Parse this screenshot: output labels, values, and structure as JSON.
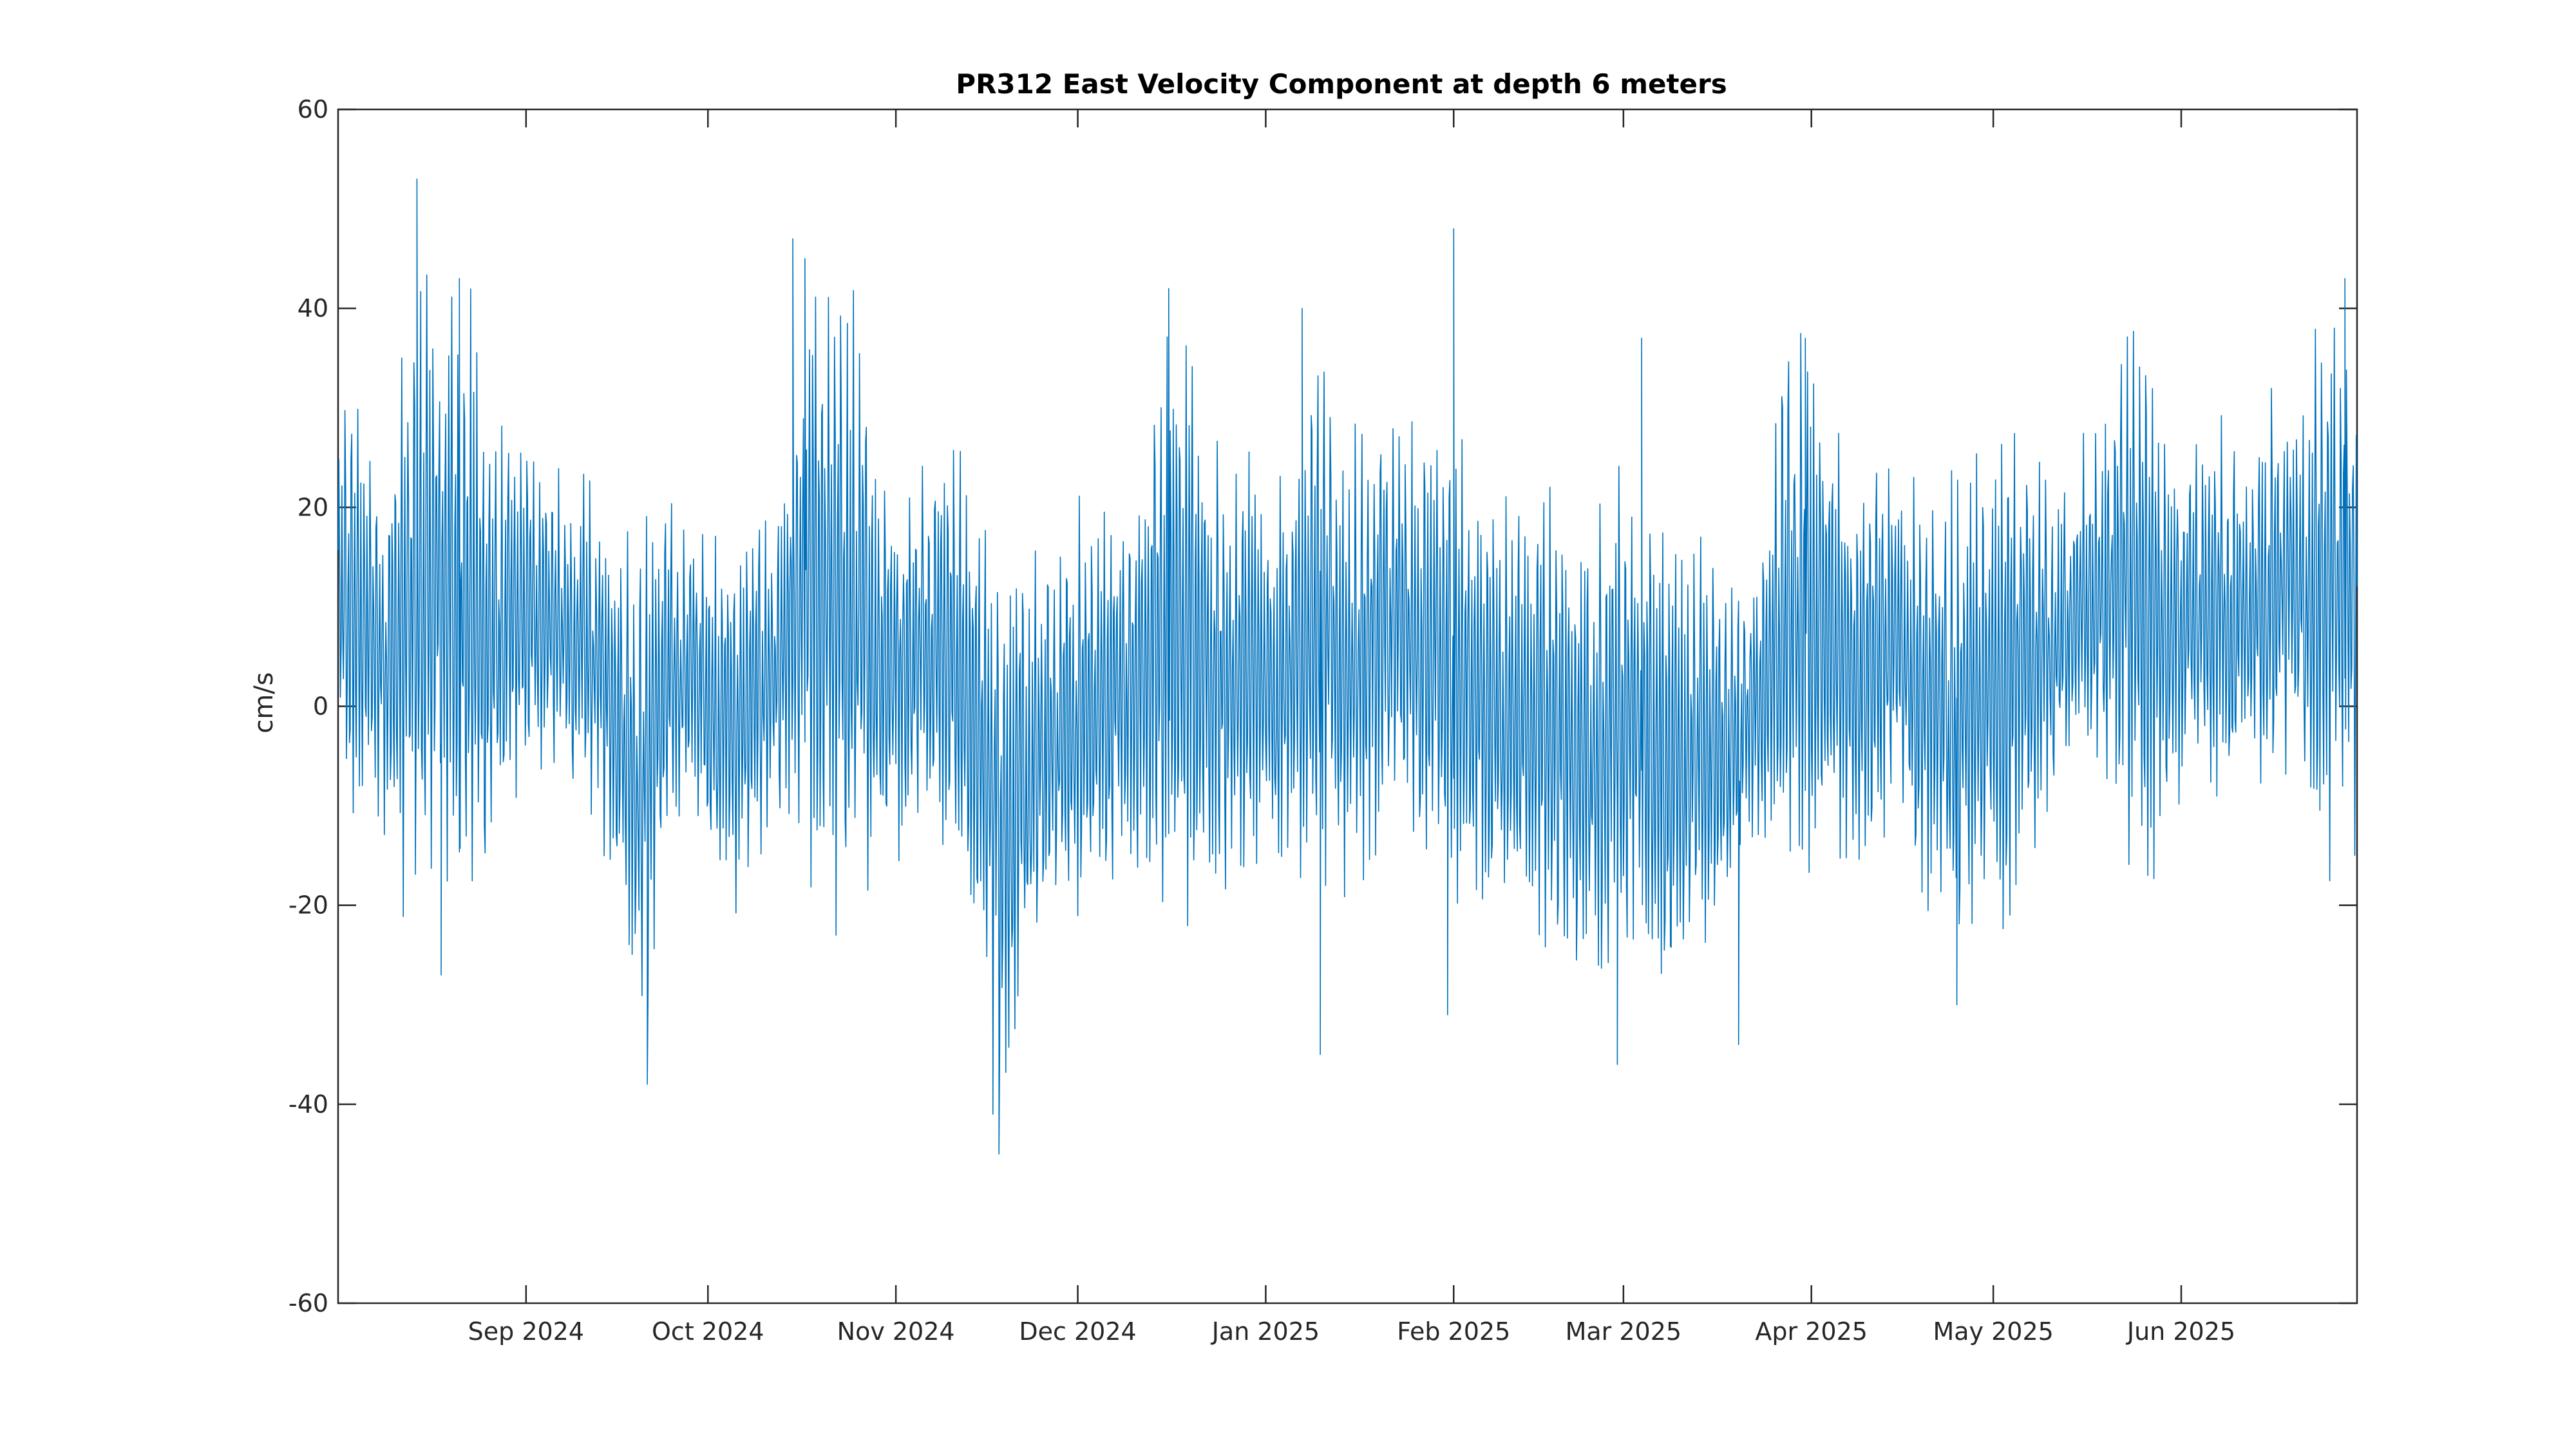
{
  "chart_data": {
    "type": "line",
    "title": "PR312 East Velocity Component at depth 6 meters",
    "xlabel": "",
    "ylabel": "cm/s",
    "xlim": [
      "2024-08-01",
      "2025-06-30"
    ],
    "ylim": [
      -60,
      60
    ],
    "grid": false,
    "legend": "none",
    "y_ticks": [
      -60,
      -40,
      -20,
      0,
      20,
      40,
      60
    ],
    "x_ticks": [
      {
        "date": "2024-09-01",
        "label": "Sep 2024"
      },
      {
        "date": "2024-10-01",
        "label": "Oct 2024"
      },
      {
        "date": "2024-11-01",
        "label": "Nov 2024"
      },
      {
        "date": "2024-12-01",
        "label": "Dec 2024"
      },
      {
        "date": "2025-01-01",
        "label": "Jan 2025"
      },
      {
        "date": "2025-02-01",
        "label": "Feb 2025"
      },
      {
        "date": "2025-03-01",
        "label": "Mar 2025"
      },
      {
        "date": "2025-04-01",
        "label": "Apr 2025"
      },
      {
        "date": "2025-05-01",
        "label": "May 2025"
      },
      {
        "date": "2025-06-01",
        "label": "Jun 2025"
      }
    ],
    "series": [
      {
        "color": "#0072BD",
        "values": [
          {
            "date": "2024-08-01",
            "mean": 10,
            "amplitude": 15
          },
          {
            "date": "2024-08-05",
            "mean": 8,
            "amplitude": 14
          },
          {
            "date": "2024-08-09",
            "mean": 5,
            "amplitude": 13
          },
          {
            "date": "2024-08-14",
            "mean": 10,
            "amplitude": 24
          },
          {
            "date": "2024-08-18",
            "mean": 12,
            "amplitude": 20
          },
          {
            "date": "2024-08-22",
            "mean": 10,
            "amplitude": 22
          },
          {
            "date": "2024-08-26",
            "mean": 6,
            "amplitude": 16
          },
          {
            "date": "2024-08-30",
            "mean": 8,
            "amplitude": 12
          },
          {
            "date": "2024-09-04",
            "mean": 10,
            "amplitude": 11
          },
          {
            "date": "2024-09-08",
            "mean": 6,
            "amplitude": 10
          },
          {
            "date": "2024-09-12",
            "mean": 5,
            "amplitude": 12
          },
          {
            "date": "2024-09-16",
            "mean": 0,
            "amplitude": 12
          },
          {
            "date": "2024-09-20",
            "mean": -8,
            "amplitude": 18
          },
          {
            "date": "2024-09-24",
            "mean": 2,
            "amplitude": 12
          },
          {
            "date": "2024-09-28",
            "mean": 4,
            "amplitude": 10
          },
          {
            "date": "2024-10-02",
            "mean": 0,
            "amplitude": 12
          },
          {
            "date": "2024-10-06",
            "mean": -2,
            "amplitude": 13
          },
          {
            "date": "2024-10-10",
            "mean": 2,
            "amplitude": 12
          },
          {
            "date": "2024-10-14",
            "mean": 5,
            "amplitude": 12
          },
          {
            "date": "2024-10-18",
            "mean": 12,
            "amplitude": 22
          },
          {
            "date": "2024-10-22",
            "mean": 10,
            "amplitude": 25
          },
          {
            "date": "2024-10-26",
            "mean": 8,
            "amplitude": 20
          },
          {
            "date": "2024-10-30",
            "mean": 5,
            "amplitude": 14
          },
          {
            "date": "2024-11-03",
            "mean": 4,
            "amplitude": 13
          },
          {
            "date": "2024-11-07",
            "mean": 8,
            "amplitude": 14
          },
          {
            "date": "2024-11-11",
            "mean": 5,
            "amplitude": 15
          },
          {
            "date": "2024-11-15",
            "mean": -5,
            "amplitude": 18
          },
          {
            "date": "2024-11-19",
            "mean": -12,
            "amplitude": 20
          },
          {
            "date": "2024-11-23",
            "mean": -8,
            "amplitude": 15
          },
          {
            "date": "2024-11-27",
            "mean": -3,
            "amplitude": 14
          },
          {
            "date": "2024-12-01",
            "mean": -2,
            "amplitude": 15
          },
          {
            "date": "2024-12-05",
            "mean": 0,
            "amplitude": 14
          },
          {
            "date": "2024-12-09",
            "mean": 2,
            "amplitude": 13
          },
          {
            "date": "2024-12-13",
            "mean": 4,
            "amplitude": 16
          },
          {
            "date": "2024-12-17",
            "mean": 8,
            "amplitude": 22
          },
          {
            "date": "2024-12-21",
            "mean": 6,
            "amplitude": 18
          },
          {
            "date": "2024-12-25",
            "mean": 2,
            "amplitude": 15
          },
          {
            "date": "2024-12-29",
            "mean": 4,
            "amplitude": 16
          },
          {
            "date": "2025-01-02",
            "mean": 2,
            "amplitude": 14
          },
          {
            "date": "2025-01-06",
            "mean": 6,
            "amplitude": 15
          },
          {
            "date": "2025-01-10",
            "mean": 8,
            "amplitude": 18
          },
          {
            "date": "2025-01-14",
            "mean": 4,
            "amplitude": 16
          },
          {
            "date": "2025-01-18",
            "mean": 6,
            "amplitude": 16
          },
          {
            "date": "2025-01-22",
            "mean": 8,
            "amplitude": 15
          },
          {
            "date": "2025-01-26",
            "mean": 6,
            "amplitude": 15
          },
          {
            "date": "2025-01-30",
            "mean": 4,
            "amplitude": 16
          },
          {
            "date": "2025-02-03",
            "mean": 2,
            "amplitude": 16
          },
          {
            "date": "2025-02-07",
            "mean": 0,
            "amplitude": 15
          },
          {
            "date": "2025-02-11",
            "mean": 0,
            "amplitude": 14
          },
          {
            "date": "2025-02-15",
            "mean": -2,
            "amplitude": 15
          },
          {
            "date": "2025-02-19",
            "mean": -4,
            "amplitude": 16
          },
          {
            "date": "2025-02-23",
            "mean": -5,
            "amplitude": 18
          },
          {
            "date": "2025-02-27",
            "mean": -3,
            "amplitude": 17
          },
          {
            "date": "2025-03-03",
            "mean": -2,
            "amplitude": 17
          },
          {
            "date": "2025-03-07",
            "mean": -6,
            "amplitude": 17
          },
          {
            "date": "2025-03-11",
            "mean": -4,
            "amplitude": 16
          },
          {
            "date": "2025-03-15",
            "mean": -6,
            "amplitude": 14
          },
          {
            "date": "2025-03-19",
            "mean": -4,
            "amplitude": 12
          },
          {
            "date": "2025-03-23",
            "mean": 0,
            "amplitude": 10
          },
          {
            "date": "2025-03-27",
            "mean": 8,
            "amplitude": 18
          },
          {
            "date": "2025-03-31",
            "mean": 10,
            "amplitude": 20
          },
          {
            "date": "2025-04-04",
            "mean": 6,
            "amplitude": 16
          },
          {
            "date": "2025-04-08",
            "mean": 4,
            "amplitude": 14
          },
          {
            "date": "2025-04-12",
            "mean": 5,
            "amplitude": 13
          },
          {
            "date": "2025-04-16",
            "mean": 6,
            "amplitude": 12
          },
          {
            "date": "2025-04-20",
            "mean": 0,
            "amplitude": 14
          },
          {
            "date": "2025-04-24",
            "mean": -2,
            "amplitude": 16
          },
          {
            "date": "2025-04-28",
            "mean": 2,
            "amplitude": 16
          },
          {
            "date": "2025-05-02",
            "mean": 0,
            "amplitude": 18
          },
          {
            "date": "2025-05-06",
            "mean": 5,
            "amplitude": 15
          },
          {
            "date": "2025-05-10",
            "mean": 6,
            "amplitude": 12
          },
          {
            "date": "2025-05-14",
            "mean": 8,
            "amplitude": 10
          },
          {
            "date": "2025-05-18",
            "mean": 10,
            "amplitude": 14
          },
          {
            "date": "2025-05-22",
            "mean": 12,
            "amplitude": 18
          },
          {
            "date": "2025-05-26",
            "mean": 10,
            "amplitude": 20
          },
          {
            "date": "2025-05-30",
            "mean": 6,
            "amplitude": 14
          },
          {
            "date": "2025-06-03",
            "mean": 8,
            "amplitude": 12
          },
          {
            "date": "2025-06-07",
            "mean": 10,
            "amplitude": 14
          },
          {
            "date": "2025-06-11",
            "mean": 8,
            "amplitude": 12
          },
          {
            "date": "2025-06-15",
            "mean": 10,
            "amplitude": 14
          },
          {
            "date": "2025-06-19",
            "mean": 12,
            "amplitude": 14
          },
          {
            "date": "2025-06-23",
            "mean": 10,
            "amplitude": 18
          },
          {
            "date": "2025-06-27",
            "mean": 12,
            "amplitude": 20
          },
          {
            "date": "2025-06-30",
            "mean": 10,
            "amplitude": 18
          }
        ],
        "peaks": [
          {
            "date": "2024-08-14",
            "value": 53
          },
          {
            "date": "2024-08-18",
            "value": -27
          },
          {
            "date": "2024-08-21",
            "value": 43
          },
          {
            "date": "2024-09-21",
            "value": -38
          },
          {
            "date": "2024-10-15",
            "value": 47
          },
          {
            "date": "2024-10-17",
            "value": 45
          },
          {
            "date": "2024-11-18",
            "value": -45
          },
          {
            "date": "2024-11-17",
            "value": -41
          },
          {
            "date": "2024-12-16",
            "value": 42
          },
          {
            "date": "2025-01-07",
            "value": 40
          },
          {
            "date": "2025-01-10",
            "value": -35
          },
          {
            "date": "2025-02-01",
            "value": 48
          },
          {
            "date": "2025-01-31",
            "value": -31
          },
          {
            "date": "2025-02-28",
            "value": -36
          },
          {
            "date": "2025-03-04",
            "value": 37
          },
          {
            "date": "2025-03-20",
            "value": -34
          },
          {
            "date": "2025-03-31",
            "value": 37
          },
          {
            "date": "2025-04-25",
            "value": -30
          },
          {
            "date": "2025-06-28",
            "value": 43
          }
        ]
      }
    ]
  }
}
